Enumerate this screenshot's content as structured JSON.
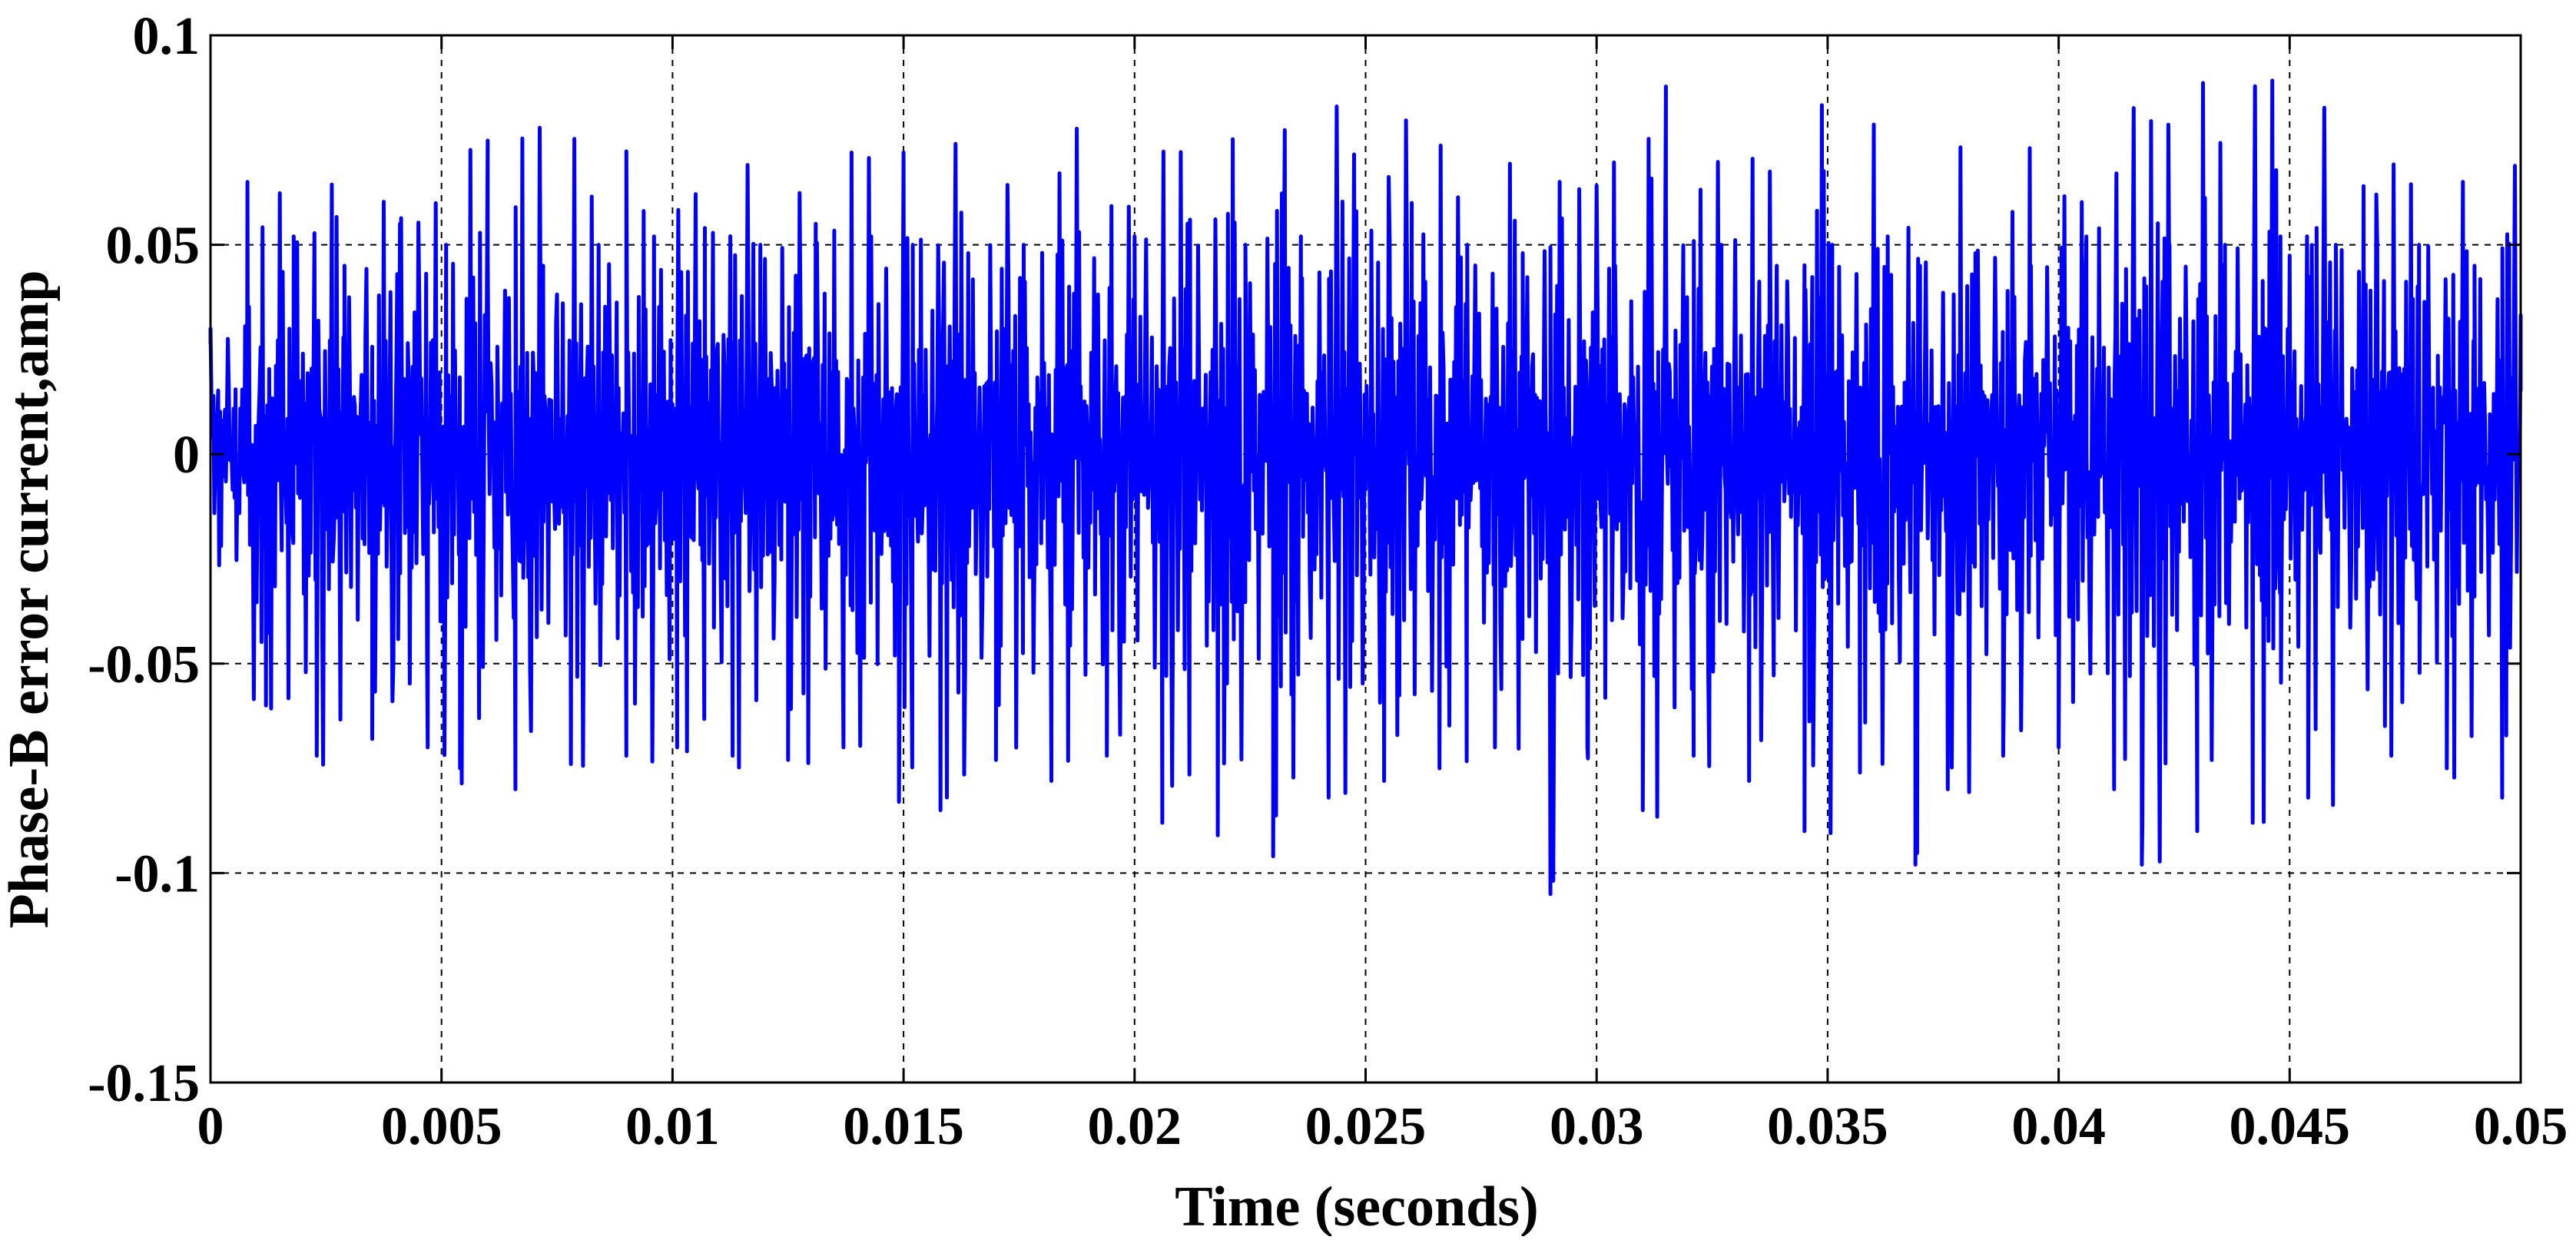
{
  "chart_data": {
    "type": "line",
    "title": "",
    "xlabel": "Time (seconds)",
    "ylabel": "Phase-B error current,amp",
    "xlim": [
      0,
      0.05
    ],
    "ylim": [
      -0.15,
      0.1
    ],
    "xticks": [
      0,
      0.005,
      0.01,
      0.015,
      0.02,
      0.025,
      0.03,
      0.035,
      0.04,
      0.045,
      0.05
    ],
    "xtick_labels": [
      "0",
      "0.005",
      "0.01",
      "0.015",
      "0.02",
      "0.025",
      "0.03",
      "0.035",
      "0.04",
      "0.045",
      "0.05"
    ],
    "yticks": [
      0.1,
      0.05,
      0,
      -0.05,
      -0.1,
      -0.15
    ],
    "ytick_labels": [
      "0.1",
      "0.05",
      "0",
      "-0.05",
      "-0.1",
      "-0.15"
    ],
    "grid": true,
    "legend": "none",
    "series": [
      {
        "name": "",
        "color": "#0000ff",
        "description_points": {
          "x": [
            0,
            0.0008,
            0.0012,
            0.0018,
            0.0023,
            0.0029,
            0.0035,
            0.0041,
            0.0047,
            0.0051,
            0.0054,
            0.006,
            0.0066,
            0.0072,
            0.0078,
            0.0084,
            0.009,
            0.0096,
            0.0101,
            0.0107,
            0.0113,
            0.0119,
            0.0125,
            0.0131,
            0.0137,
            0.0143,
            0.0149,
            0.0152,
            0.0158,
            0.0164,
            0.017,
            0.0176,
            0.0182,
            0.0188,
            0.0194,
            0.02,
            0.0206,
            0.0212,
            0.0218,
            0.0224,
            0.023,
            0.0236,
            0.0242,
            0.0248,
            0.0254,
            0.026,
            0.0266,
            0.0272,
            0.0278,
            0.0284,
            0.029,
            0.0292,
            0.0298,
            0.0304,
            0.031,
            0.0315,
            0.0321,
            0.0327,
            0.0333,
            0.0339,
            0.0345,
            0.0351,
            0.0357,
            0.0363,
            0.0369,
            0.037,
            0.0376,
            0.0382,
            0.0388,
            0.0394,
            0.04,
            0.0406,
            0.0412,
            0.0418,
            0.0424,
            0.043,
            0.0436,
            0.0442,
            0.0448,
            0.0454,
            0.046,
            0.0466,
            0.0472,
            0.0478,
            0.0484,
            0.049,
            0.0496,
            0.05
          ],
          "y": [
            0.03,
            0.065,
            -0.06,
            0.052,
            -0.072,
            0.045,
            -0.068,
            0.055,
            -0.07,
            0.05,
            -0.075,
            0.048,
            -0.08,
            0.045,
            -0.074,
            0.05,
            -0.072,
            0.052,
            -0.07,
            0.054,
            -0.072,
            0.05,
            -0.073,
            0.055,
            -0.07,
            0.052,
            -0.083,
            0.05,
            -0.085,
            0.048,
            -0.073,
            0.05,
            -0.078,
            0.053,
            -0.072,
            0.052,
            -0.088,
            0.056,
            -0.091,
            0.05,
            -0.096,
            0.052,
            -0.082,
            0.058,
            -0.078,
            0.06,
            -0.075,
            0.05,
            -0.07,
            0.048,
            -0.105,
            0.065,
            -0.07,
            0.045,
            -0.085,
            0.06,
            -0.072,
            0.05,
            -0.078,
            0.045,
            -0.09,
            0.05,
            -0.076,
            0.052,
            -0.098,
            0.045,
            -0.08,
            0.048,
            -0.072,
            0.045,
            -0.07,
            0.052,
            -0.08,
            -0.098,
            0.05,
            -0.09,
            0.05,
            -0.088,
            0.052,
            -0.082,
            0.05,
            0.064,
            -0.072,
            0.05,
            -0.075,
            0.045,
            -0.082,
            0.015
          ]
        }
      }
    ]
  }
}
